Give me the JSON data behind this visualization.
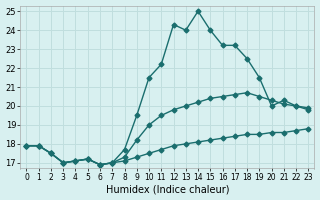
{
  "xlabel": "Humidex (Indice chaleur)",
  "bg_color": "#d8f0f0",
  "grid_color": "#c0dede",
  "line_color": "#1a6e6e",
  "xlim_min": -0.5,
  "xlim_max": 23.5,
  "ylim_min": 16.7,
  "ylim_max": 25.3,
  "xticks": [
    0,
    1,
    2,
    3,
    4,
    5,
    6,
    7,
    8,
    9,
    10,
    11,
    12,
    13,
    14,
    15,
    16,
    17,
    18,
    19,
    20,
    21,
    22,
    23
  ],
  "yticks": [
    17,
    18,
    19,
    20,
    21,
    22,
    23,
    24,
    25
  ],
  "line_top_x": [
    0,
    1,
    2,
    3,
    4,
    5,
    6,
    7,
    8,
    9,
    10,
    11,
    12,
    13,
    14,
    15,
    16,
    17,
    18,
    19,
    20,
    21,
    22,
    23
  ],
  "line_top_y": [
    17.9,
    17.9,
    17.5,
    17.0,
    17.1,
    17.2,
    16.9,
    17.0,
    17.7,
    19.5,
    21.5,
    22.2,
    24.3,
    24.0,
    25.0,
    24.0,
    23.2,
    23.2,
    22.5,
    21.5,
    20.0,
    20.3,
    20.0,
    19.9
  ],
  "line_mid_x": [
    0,
    1,
    2,
    3,
    4,
    5,
    6,
    7,
    8,
    9,
    10,
    11,
    12,
    13,
    14,
    15,
    16,
    17,
    18,
    19,
    20,
    21,
    22,
    23
  ],
  "line_mid_y": [
    17.9,
    17.9,
    17.5,
    17.0,
    17.1,
    17.2,
    16.9,
    17.0,
    17.3,
    18.2,
    19.0,
    19.5,
    19.8,
    20.0,
    20.2,
    20.4,
    20.5,
    20.6,
    20.7,
    20.5,
    20.3,
    20.1,
    20.0,
    19.8
  ],
  "line_bot_x": [
    0,
    1,
    2,
    3,
    4,
    5,
    6,
    7,
    8,
    9,
    10,
    11,
    12,
    13,
    14,
    15,
    16,
    17,
    18,
    19,
    20,
    21,
    22,
    23
  ],
  "line_bot_y": [
    17.9,
    17.9,
    17.5,
    17.0,
    17.1,
    17.2,
    16.9,
    17.0,
    17.1,
    17.3,
    17.5,
    17.7,
    17.9,
    18.0,
    18.1,
    18.2,
    18.3,
    18.4,
    18.5,
    18.5,
    18.6,
    18.6,
    18.7,
    18.8
  ],
  "marker_style": "D",
  "marker_size": 2.5,
  "line_width": 1.0
}
